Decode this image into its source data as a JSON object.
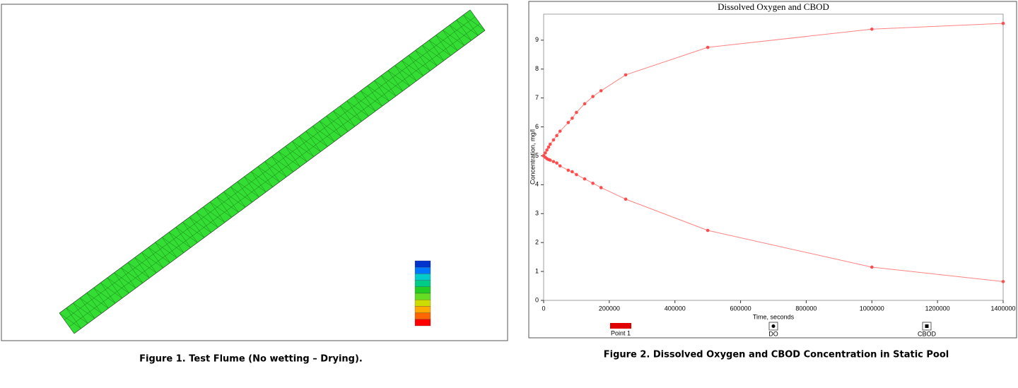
{
  "chart_data": {
    "type": "line",
    "title": "Dissolved Oxygen and CBOD",
    "x_label": "Time, seconds",
    "y_label": "Concentration, mg/l",
    "x": [
      0,
      5000,
      10000,
      15000,
      20000,
      30000,
      40000,
      50000,
      75000,
      87000,
      100000,
      125000,
      150000,
      175000,
      250000,
      500000,
      1000000,
      1400000
    ],
    "series": [
      {
        "name": "DO",
        "color": "#ff4d4d",
        "values": [
          5,
          5.1,
          5.2,
          5.3,
          5.4,
          5.55,
          5.7,
          5.85,
          6.15,
          6.3,
          6.5,
          6.8,
          7.05,
          7.25,
          7.8,
          8.75,
          9.38,
          9.58
        ]
      },
      {
        "name": "CBOD",
        "color": "#ff4d4d",
        "values": [
          5,
          4.95,
          4.9,
          4.87,
          4.85,
          4.8,
          4.75,
          4.65,
          4.5,
          4.45,
          4.35,
          4.2,
          4.05,
          3.9,
          3.5,
          2.42,
          1.15,
          0.65
        ]
      }
    ],
    "extra_legend": {
      "name": "Point 1",
      "color": "#e00000"
    },
    "xlim": [
      0,
      1400000
    ],
    "xticks": [
      0,
      200000,
      400000,
      600000,
      800000,
      1000000,
      1200000,
      1400000
    ],
    "ylim": [
      0,
      9.9
    ],
    "yticks": [
      0,
      1,
      2,
      3,
      4,
      5,
      6,
      7,
      8,
      9
    ]
  },
  "captions": [
    "Figure 1.  Test Flume (No wetting – Drying).",
    "Figure 2. Dissolved Oxygen and CBOD Concentration in Static Pool"
  ]
}
